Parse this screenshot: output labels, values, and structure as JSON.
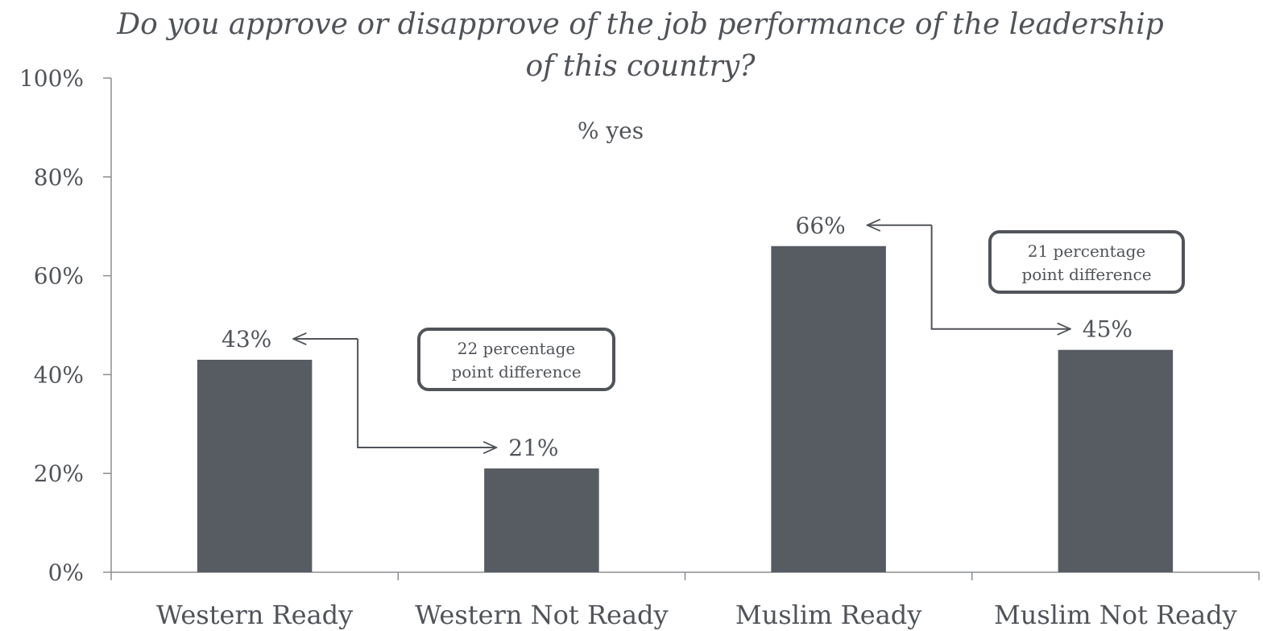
{
  "chart_data": {
    "type": "bar",
    "title_lines": [
      "Do you approve or disapprove of the job performance of the leadership",
      "of this country?"
    ],
    "subtitle": "% yes",
    "categories": [
      "Western Ready",
      "Western Not Ready",
      "Muslim Ready",
      "Muslim Not Ready"
    ],
    "values": [
      43,
      21,
      66,
      45
    ],
    "value_labels": [
      "43%",
      "21%",
      "66%",
      "45%"
    ],
    "ylim": [
      0,
      100
    ],
    "yticks": [
      0,
      20,
      40,
      60,
      80,
      100
    ],
    "ytick_labels": [
      "0%",
      "20%",
      "40%",
      "60%",
      "80%",
      "100%"
    ],
    "bar_color": "#575b62",
    "grid": false,
    "legend": "none",
    "annotations": [
      {
        "text_lines": [
          "22 percentage",
          "point difference"
        ],
        "from_category": 0,
        "to_category": 1
      },
      {
        "text_lines": [
          "21 percentage",
          "point difference"
        ],
        "from_category": 2,
        "to_category": 3
      }
    ]
  }
}
